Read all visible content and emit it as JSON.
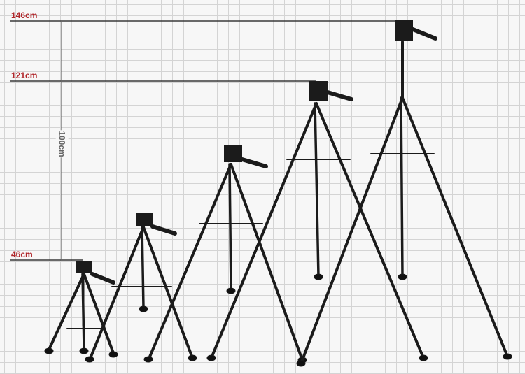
{
  "image": {
    "subject": "tripod"
  },
  "height_labels": {
    "max": "146cm",
    "mid": "121cm",
    "min": "46cm",
    "span": "100cm"
  },
  "colors": {
    "label": "#b0262a",
    "rule": "#3a3a3a",
    "tripod": "#1b1b1b"
  }
}
